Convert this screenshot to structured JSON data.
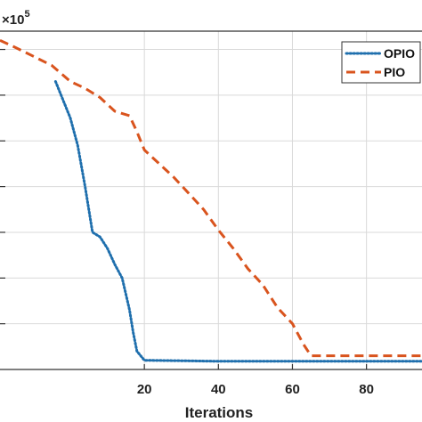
{
  "chart_data": {
    "type": "line",
    "xlabel": "Iterations",
    "ylabel": "",
    "exponent_label": "×10",
    "exponent_power": "5",
    "xlim": [
      -19,
      95
    ],
    "ylim": [
      0,
      7.4
    ],
    "xticks": [
      20,
      40,
      60,
      80
    ],
    "xtick_labels": [
      "20",
      "40",
      "60",
      "80"
    ],
    "grid": true,
    "legend_position": "top-right",
    "series": [
      {
        "name": "OPIO",
        "color": "#1f6fad",
        "style": "dotted",
        "x": [
          -4,
          0,
          2,
          4,
          6,
          8,
          10,
          12,
          14,
          16,
          17,
          18,
          20,
          30,
          40,
          50,
          60,
          70,
          80,
          95
        ],
        "y": [
          6.3,
          5.5,
          4.9,
          4.0,
          3.0,
          2.9,
          2.65,
          2.3,
          2.0,
          1.3,
          0.8,
          0.4,
          0.2,
          0.19,
          0.18,
          0.18,
          0.18,
          0.18,
          0.18,
          0.18
        ]
      },
      {
        "name": "PIO",
        "color": "#d9541e",
        "style": "dashed",
        "x": [
          -19,
          -15,
          -10,
          -5,
          0,
          4,
          8,
          12,
          16,
          18,
          20,
          22,
          24,
          28,
          32,
          36,
          40,
          44,
          48,
          52,
          56,
          60,
          63,
          65,
          70,
          80,
          95
        ],
        "y": [
          7.2,
          7.05,
          6.85,
          6.65,
          6.3,
          6.15,
          5.95,
          5.65,
          5.55,
          5.2,
          4.8,
          4.65,
          4.5,
          4.2,
          3.85,
          3.5,
          3.05,
          2.65,
          2.2,
          1.85,
          1.35,
          1.0,
          0.55,
          0.3,
          0.3,
          0.3,
          0.3
        ]
      }
    ]
  }
}
